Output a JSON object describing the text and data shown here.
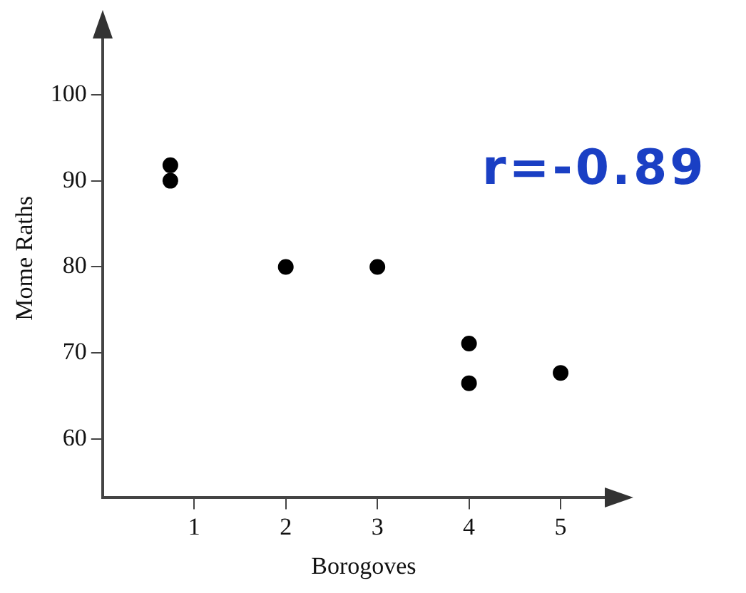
{
  "chart_data": {
    "type": "scatter",
    "xlabel": "Borogoves",
    "ylabel": "Mome Raths",
    "x": [
      0.74,
      0.74,
      2,
      3,
      4,
      4,
      5
    ],
    "values": [
      91.8,
      90,
      80,
      80,
      71.1,
      66.5,
      67.7
    ],
    "color": "#000000",
    "marker": "circle",
    "xlim": [
      0,
      5.7
    ],
    "xticks": [
      1,
      2,
      3,
      4,
      5
    ],
    "ylim": [
      53.2,
      108.8
    ],
    "yticks": [
      60,
      70,
      80,
      90,
      100
    ],
    "grid": false,
    "legend": false,
    "annotations": [
      "r=-0.89"
    ]
  }
}
